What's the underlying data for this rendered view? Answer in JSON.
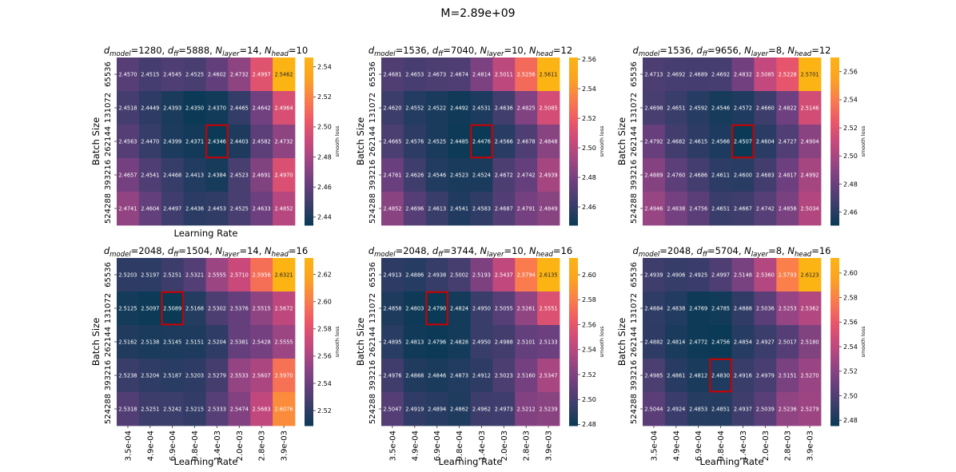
{
  "figure": {
    "suptitle": "M=2.89e+09"
  },
  "colormap": [
    "#0a3a55",
    "#3b3d6b",
    "#6a3f7e",
    "#9a4583",
    "#c8497c",
    "#ec5868",
    "#fa7c4d",
    "#fca221",
    "#fcb414"
  ],
  "highlight_color": "#cc0000",
  "chart_data": [
    {
      "type": "heatmap",
      "title": {
        "pre": "d",
        "sub1": "model",
        "mid1": "=1280, d",
        "sub2": "ff",
        "mid2": "=5888, N",
        "sub3": "layer",
        "mid3": "=14, N",
        "sub4": "head",
        "post": "=10"
      },
      "xlabel": "Learning Rate",
      "ylabel": "Batch Size",
      "colorbar_label": "smooth loss",
      "show_xticks": false,
      "x_categories": [
        "3.5e-04",
        "4.9e-04",
        "6.9e-04",
        "9.8e-04",
        "1.4e-03",
        "2.0e-03",
        "2.8e-03",
        "3.9e-03"
      ],
      "y_categories": [
        "65536",
        "131072",
        "262144",
        "393216",
        "524288"
      ],
      "values": [
        [
          2.457,
          2.4515,
          2.4545,
          2.4525,
          2.4602,
          2.4732,
          2.4997,
          2.5462
        ],
        [
          2.4518,
          2.4449,
          2.4393,
          2.435,
          2.437,
          2.4465,
          2.4642,
          2.4964
        ],
        [
          2.4563,
          2.447,
          2.4399,
          2.4371,
          2.4346,
          2.4403,
          2.4582,
          2.4732
        ],
        [
          2.4657,
          2.4541,
          2.4468,
          2.4413,
          2.4384,
          2.4523,
          2.4691,
          2.497
        ],
        [
          2.4741,
          2.4604,
          2.4497,
          2.4436,
          2.4453,
          2.4525,
          2.4633,
          2.4852
        ]
      ],
      "labels": [
        [
          "2.4570",
          "2.4515",
          "2.4545",
          "2.4525",
          "2.4602",
          "2.4732",
          "2.4997",
          "2.5462"
        ],
        [
          "2.4518",
          "2.4449",
          "2.4393",
          "2.4350",
          "2.4370",
          "2.4465",
          "2.4642",
          "2.4964"
        ],
        [
          "2.4563",
          "2.4470",
          "2.4399",
          "2.4371",
          "2.4346",
          "2.4403",
          "2.4582",
          "2.4732"
        ],
        [
          "2.4657",
          "2.4541",
          "2.4468",
          "2.4413",
          "2.4384",
          "2.4523",
          "2.4691",
          "2.4970"
        ],
        [
          "2.4741",
          "2.4604",
          "2.4497",
          "2.4436",
          "2.4453",
          "2.4525",
          "2.4633",
          "2.4852"
        ]
      ],
      "vmin": 2.4346,
      "vmax": 2.5462,
      "colorbar_ticks": [
        2.44,
        2.46,
        2.48,
        2.5,
        2.52,
        2.54
      ],
      "colorbar_tick_labels": [
        "2.44",
        "2.46",
        "2.48",
        "2.50",
        "2.52",
        "2.54"
      ],
      "best_cell": [
        2,
        4
      ]
    },
    {
      "type": "heatmap",
      "title": {
        "pre": "d",
        "sub1": "model",
        "mid1": "=1536, d",
        "sub2": "ff",
        "mid2": "=7040, N",
        "sub3": "layer",
        "mid3": "=10, N",
        "sub4": "head",
        "post": "=12"
      },
      "xlabel": "",
      "ylabel": "Batch Size",
      "colorbar_label": "smooth loss",
      "show_xticks": false,
      "x_categories": [
        "3.5e-04",
        "4.9e-04",
        "6.9e-04",
        "9.8e-04",
        "1.4e-03",
        "2.0e-03",
        "2.8e-03",
        "3.9e-03"
      ],
      "y_categories": [
        "65536",
        "131072",
        "262144",
        "393216",
        "524288"
      ],
      "values": [
        [
          2.4681,
          2.4653,
          2.4673,
          2.4674,
          2.4814,
          2.5011,
          2.5256,
          2.5611
        ],
        [
          2.462,
          2.4552,
          2.4522,
          2.4492,
          2.4531,
          2.4636,
          2.4825,
          2.5085
        ],
        [
          2.4665,
          2.4576,
          2.4525,
          2.4485,
          2.4476,
          2.4566,
          2.4678,
          2.4848
        ],
        [
          2.4761,
          2.4626,
          2.4546,
          2.4523,
          2.4524,
          2.4672,
          2.4742,
          2.4939
        ],
        [
          2.4852,
          2.4696,
          2.4613,
          2.4541,
          2.4583,
          2.4687,
          2.4791,
          2.4849
        ]
      ],
      "labels": [
        [
          "2.4681",
          "2.4653",
          "2.4673",
          "2.4674",
          "2.4814",
          "2.5011",
          "2.5256",
          "2.5611"
        ],
        [
          "2.4620",
          "2.4552",
          "2.4522",
          "2.4492",
          "2.4531",
          "2.4636",
          "2.4825",
          "2.5085"
        ],
        [
          "2.4665",
          "2.4576",
          "2.4525",
          "2.4485",
          "2.4476",
          "2.4566",
          "2.4678",
          "2.4848"
        ],
        [
          "2.4761",
          "2.4626",
          "2.4546",
          "2.4523",
          "2.4524",
          "2.4672",
          "2.4742",
          "2.4939"
        ],
        [
          "2.4852",
          "2.4696",
          "2.4613",
          "2.4541",
          "2.4583",
          "2.4687",
          "2.4791",
          "2.4849"
        ]
      ],
      "vmin": 2.4476,
      "vmax": 2.5611,
      "colorbar_ticks": [
        2.46,
        2.48,
        2.5,
        2.52,
        2.54,
        2.56
      ],
      "colorbar_tick_labels": [
        "2.46",
        "2.48",
        "2.50",
        "2.52",
        "2.54",
        "2.56"
      ],
      "best_cell": [
        2,
        4
      ]
    },
    {
      "type": "heatmap",
      "title": {
        "pre": "d",
        "sub1": "model",
        "mid1": "=1536, d",
        "sub2": "ff",
        "mid2": "=9656, N",
        "sub3": "layer",
        "mid3": "=8, N",
        "sub4": "head",
        "post": "=12"
      },
      "xlabel": "",
      "ylabel": "Batch Size",
      "colorbar_label": "smooth loss",
      "show_xticks": false,
      "x_categories": [
        "3.5e-04",
        "4.9e-04",
        "6.9e-04",
        "9.8e-04",
        "1.4e-03",
        "2.0e-03",
        "2.8e-03",
        "3.9e-03"
      ],
      "y_categories": [
        "65536",
        "131072",
        "262144",
        "393216",
        "524288"
      ],
      "values": [
        [
          2.4713,
          2.4692,
          2.4689,
          2.4692,
          2.4832,
          2.5085,
          2.5228,
          2.5701
        ],
        [
          2.4698,
          2.4651,
          2.4592,
          2.4546,
          2.4572,
          2.466,
          2.4822,
          2.5146
        ],
        [
          2.4792,
          2.4682,
          2.4615,
          2.4566,
          2.4507,
          2.4604,
          2.4727,
          2.4904
        ],
        [
          2.4889,
          2.476,
          2.4686,
          2.4611,
          2.46,
          2.4683,
          2.4817,
          2.4992
        ],
        [
          2.4946,
          2.4838,
          2.4756,
          2.4651,
          2.4667,
          2.4742,
          2.4856,
          2.5034
        ]
      ],
      "labels": [
        [
          "2.4713",
          "2.4692",
          "2.4689",
          "2.4692",
          "2.4832",
          "2.5085",
          "2.5228",
          "2.5701"
        ],
        [
          "2.4698",
          "2.4651",
          "2.4592",
          "2.4546",
          "2.4572",
          "2.4660",
          "2.4822",
          "2.5146"
        ],
        [
          "2.4792",
          "2.4682",
          "2.4615",
          "2.4566",
          "2.4507",
          "2.4604",
          "2.4727",
          "2.4904"
        ],
        [
          "2.4889",
          "2.4760",
          "2.4686",
          "2.4611",
          "2.4600",
          "2.4683",
          "2.4817",
          "2.4992"
        ],
        [
          "2.4946",
          "2.4838",
          "2.4756",
          "2.4651",
          "2.4667",
          "2.4742",
          "2.4856",
          "2.5034"
        ]
      ],
      "vmin": 2.4507,
      "vmax": 2.5701,
      "colorbar_ticks": [
        2.46,
        2.48,
        2.5,
        2.52,
        2.54,
        2.56
      ],
      "colorbar_tick_labels": [
        "2.46",
        "2.48",
        "2.50",
        "2.52",
        "2.54",
        "2.56"
      ],
      "best_cell": [
        2,
        4
      ]
    },
    {
      "type": "heatmap",
      "title": {
        "pre": "d",
        "sub1": "model",
        "mid1": "=2048, d",
        "sub2": "ff",
        "mid2": "=1504, N",
        "sub3": "layer",
        "mid3": "=14, N",
        "sub4": "head",
        "post": "=16"
      },
      "xlabel": "Learning Rate",
      "ylabel": "Batch Size",
      "colorbar_label": "smooth loss",
      "show_xticks": true,
      "x_categories": [
        "3.5e-04",
        "4.9e-04",
        "6.9e-04",
        "9.8e-04",
        "1.4e-03",
        "2.0e-03",
        "2.8e-03",
        "3.9e-03"
      ],
      "y_categories": [
        "65536",
        "131072",
        "262144",
        "393216",
        "524288"
      ],
      "values": [
        [
          2.5203,
          2.5197,
          2.5251,
          2.5321,
          2.5555,
          2.571,
          2.5956,
          2.6321
        ],
        [
          2.5125,
          2.5097,
          2.5089,
          2.5168,
          2.5302,
          2.5376,
          2.5515,
          2.5672
        ],
        [
          2.5162,
          2.5138,
          2.5145,
          2.5151,
          2.5204,
          2.5381,
          2.5428,
          2.5555
        ],
        [
          2.5238,
          2.5204,
          2.5187,
          2.5203,
          2.5279,
          2.5533,
          2.5607,
          2.597
        ],
        [
          2.5318,
          2.5251,
          2.5242,
          2.5215,
          2.5333,
          2.5474,
          2.5683,
          2.6076
        ]
      ],
      "labels": [
        [
          "2.5203",
          "2.5197",
          "2.5251",
          "2.5321",
          "2.5555",
          "2.5710",
          "2.5956",
          "2.6321"
        ],
        [
          "2.5125",
          "2.5097",
          "2.5089",
          "2.5168",
          "2.5302",
          "2.5376",
          "2.5515",
          "2.5672"
        ],
        [
          "2.5162",
          "2.5138",
          "2.5145",
          "2.5151",
          "2.5204",
          "2.5381",
          "2.5428",
          "2.5555"
        ],
        [
          "2.5238",
          "2.5204",
          "2.5187",
          "2.5203",
          "2.5279",
          "2.5533",
          "2.5607",
          "2.5970"
        ],
        [
          "2.5318",
          "2.5251",
          "2.5242",
          "2.5215",
          "2.5333",
          "2.5474",
          "2.5683",
          "2.6076"
        ]
      ],
      "vmin": 2.5089,
      "vmax": 2.6321,
      "colorbar_ticks": [
        2.52,
        2.54,
        2.56,
        2.58,
        2.6,
        2.62
      ],
      "colorbar_tick_labels": [
        "2.52",
        "2.54",
        "2.56",
        "2.58",
        "2.60",
        "2.62"
      ],
      "best_cell": [
        1,
        2
      ]
    },
    {
      "type": "heatmap",
      "title": {
        "pre": "d",
        "sub1": "model",
        "mid1": "=2048, d",
        "sub2": "ff",
        "mid2": "=3744, N",
        "sub3": "layer",
        "mid3": "=10, N",
        "sub4": "head",
        "post": "=16"
      },
      "xlabel": "Learning Rate",
      "ylabel": "Batch Size",
      "colorbar_label": "smooth loss",
      "show_xticks": true,
      "x_categories": [
        "3.5e-04",
        "4.9e-04",
        "6.9e-04",
        "9.8e-04",
        "1.4e-03",
        "2.0e-03",
        "2.8e-03",
        "3.9e-03"
      ],
      "y_categories": [
        "65536",
        "131072",
        "262144",
        "393216",
        "524288"
      ],
      "values": [
        [
          2.4913,
          2.4886,
          2.4938,
          2.5002,
          2.5193,
          2.5437,
          2.5794,
          2.6135
        ],
        [
          2.4858,
          2.4803,
          2.479,
          2.4824,
          2.495,
          2.5055,
          2.5261,
          2.5551
        ],
        [
          2.4895,
          2.4813,
          2.4796,
          2.4828,
          2.495,
          2.4988,
          2.5101,
          2.5133
        ],
        [
          2.4976,
          2.4868,
          2.4846,
          2.4873,
          2.4912,
          2.5023,
          2.516,
          2.5347
        ],
        [
          2.5047,
          2.4919,
          2.4894,
          2.4862,
          2.4962,
          2.4973,
          2.5212,
          2.5239
        ]
      ],
      "labels": [
        [
          "2.4913",
          "2.4886",
          "2.4938",
          "2.5002",
          "2.5193",
          "2.5437",
          "2.5794",
          "2.6135"
        ],
        [
          "2.4858",
          "2.4803",
          "2.4790",
          "2.4824",
          "2.4950",
          "2.5055",
          "2.5261",
          "2.5551"
        ],
        [
          "2.4895",
          "2.4813",
          "2.4796",
          "2.4828",
          "2.4950",
          "2.4988",
          "2.5101",
          "2.5133"
        ],
        [
          "2.4976",
          "2.4868",
          "2.4846",
          "2.4873",
          "2.4912",
          "2.5023",
          "2.5160",
          "2.5347"
        ],
        [
          "2.5047",
          "2.4919",
          "2.4894",
          "2.4862",
          "2.4962",
          "2.4973",
          "2.5212",
          "2.5239"
        ]
      ],
      "vmin": 2.479,
      "vmax": 2.6135,
      "colorbar_ticks": [
        2.48,
        2.5,
        2.52,
        2.54,
        2.56,
        2.58,
        2.6
      ],
      "colorbar_tick_labels": [
        "2.48",
        "2.50",
        "2.52",
        "2.54",
        "2.56",
        "2.58",
        "2.60"
      ],
      "best_cell": [
        1,
        2
      ]
    },
    {
      "type": "heatmap",
      "title": {
        "pre": "d",
        "sub1": "model",
        "mid1": "=2048, d",
        "sub2": "ff",
        "mid2": "=5704, N",
        "sub3": "layer",
        "mid3": "=8, N",
        "sub4": "head",
        "post": "=16"
      },
      "xlabel": "Learning Rate",
      "ylabel": "Batch Size",
      "colorbar_label": "smooth loss",
      "show_xticks": true,
      "x_categories": [
        "3.5e-04",
        "4.9e-04",
        "6.9e-04",
        "9.8e-04",
        "1.4e-03",
        "2.0e-03",
        "2.8e-03",
        "3.9e-03"
      ],
      "y_categories": [
        "65536",
        "131072",
        "262144",
        "393216",
        "524288"
      ],
      "values": [
        [
          2.4939,
          2.4906,
          2.4925,
          2.4997,
          2.5148,
          2.536,
          2.5793,
          2.6123
        ],
        [
          2.4884,
          2.4838,
          2.4769,
          2.4785,
          2.4888,
          2.5036,
          2.5253,
          2.5362
        ],
        [
          2.4882,
          2.4814,
          2.4772,
          2.4756,
          2.4854,
          2.4927,
          2.5017,
          2.518
        ],
        [
          2.4985,
          2.4861,
          2.4812,
          2.483,
          2.4916,
          2.4979,
          2.5151,
          2.527
        ],
        [
          2.5044,
          2.4924,
          2.4853,
          2.4851,
          2.4937,
          2.5039,
          2.5236,
          2.5279
        ]
      ],
      "labels": [
        [
          "2.4939",
          "2.4906",
          "2.4925",
          "2.4997",
          "2.5148",
          "2.5360",
          "2.5793",
          "2.6123"
        ],
        [
          "2.4884",
          "2.4838",
          "2.4769",
          "2.4785",
          "2.4888",
          "2.5036",
          "2.5253",
          "2.5362"
        ],
        [
          "2.4882",
          "2.4814",
          "2.4772",
          "2.4756",
          "2.4854",
          "2.4927",
          "2.5017",
          "2.5180"
        ],
        [
          "2.4985",
          "2.4861",
          "2.4812",
          "2.4830",
          "2.4916",
          "2.4979",
          "2.5151",
          "2.5270"
        ],
        [
          "2.5044",
          "2.4924",
          "2.4853",
          "2.4851",
          "2.4937",
          "2.5039",
          "2.5236",
          "2.5279"
        ]
      ],
      "vmin": 2.4756,
      "vmax": 2.6123,
      "colorbar_ticks": [
        2.48,
        2.5,
        2.52,
        2.54,
        2.56,
        2.58,
        2.6
      ],
      "colorbar_tick_labels": [
        "2.48",
        "2.50",
        "2.52",
        "2.54",
        "2.56",
        "2.58",
        "2.60"
      ],
      "best_cell": [
        3,
        3
      ]
    }
  ]
}
